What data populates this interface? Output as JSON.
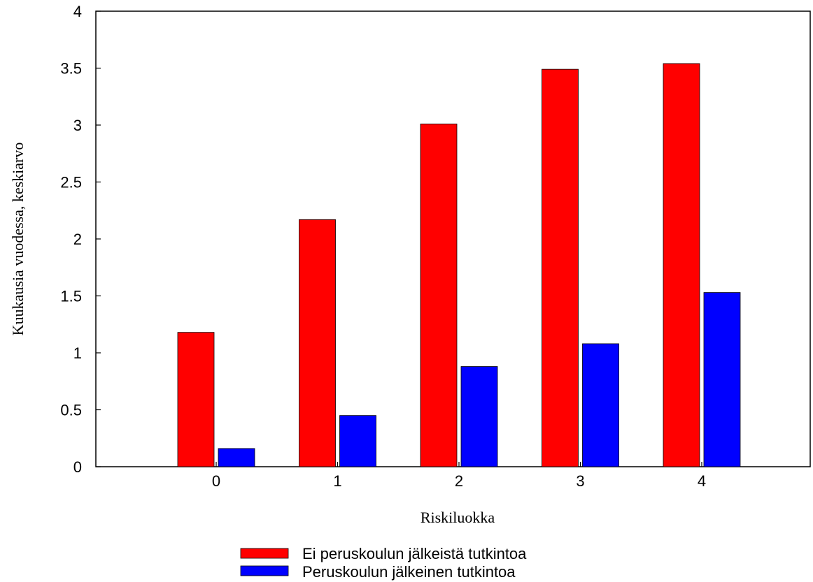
{
  "chart_data": {
    "type": "bar",
    "categories": [
      "0",
      "1",
      "2",
      "3",
      "4"
    ],
    "series": [
      {
        "name": "Ei peruskoulun jälkeistä tutkintoa",
        "values": [
          1.18,
          2.17,
          3.01,
          3.49,
          3.54
        ],
        "color": "#ff0000"
      },
      {
        "name": "Peruskoulun jälkeinen tutkintoa",
        "values": [
          0.16,
          0.45,
          0.88,
          1.08,
          1.53
        ],
        "color": "#0000ff"
      }
    ],
    "xlabel": "Riskiluokka",
    "ylabel": "Kuukausia vuodessa, keskiarvo",
    "ylim": [
      0,
      4
    ],
    "yticks": [
      "0",
      "0.5",
      "1",
      "1.5",
      "2",
      "2.5",
      "3",
      "3.5",
      "4"
    ],
    "yticks_values": [
      0,
      0.5,
      1,
      1.5,
      2,
      2.5,
      3,
      3.5,
      4
    ],
    "grid": false,
    "legend_position": "bottom-center"
  }
}
